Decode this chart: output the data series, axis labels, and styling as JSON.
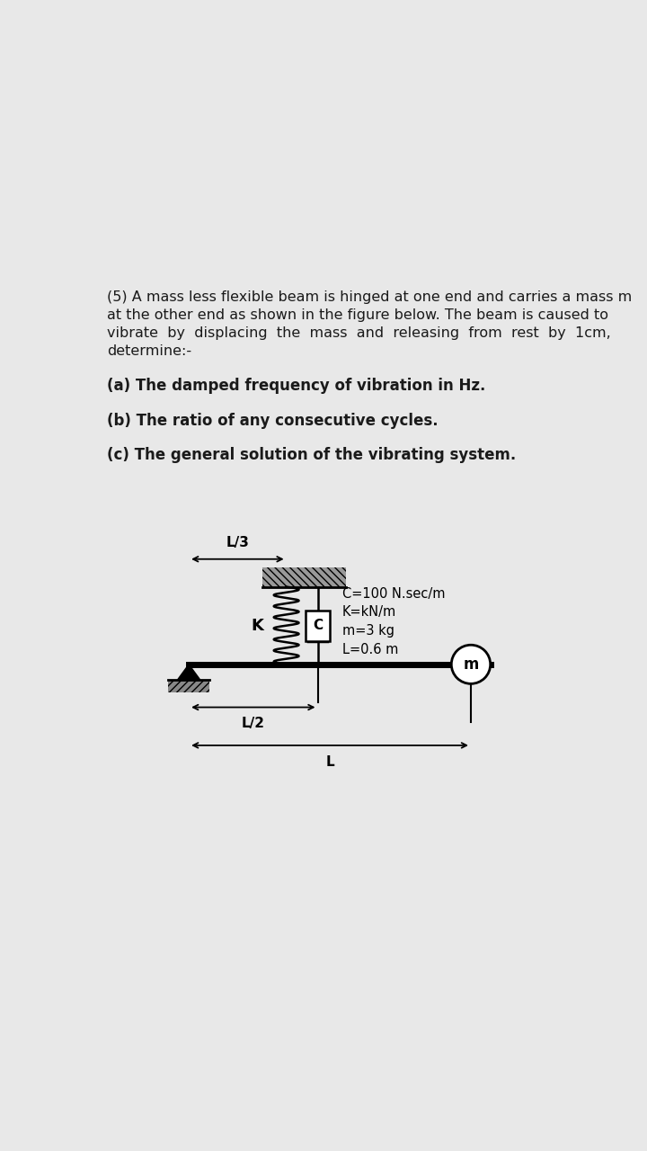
{
  "bg_color": "#e8e8e8",
  "text_color": "#1a1a1a",
  "title_lines": [
    "(5) A mass less flexible beam is hinged at one end and carries a mass m",
    "at the other end as shown in the figure below. The beam is caused to",
    "vibrate  by  displacing  the  mass  and  releasing  from  rest  by  1cm,",
    "determine:-"
  ],
  "part_a": "(a) The damped frequency of vibration in Hz.",
  "part_b": "(b) The ratio of any consecutive cycles.",
  "part_c": "(c) The general solution of the vibrating system.",
  "params_lines": [
    "C=100 N.sec/m",
    "K=kN/m",
    "m=3 kg",
    "L=0.6 m"
  ],
  "title_fontsize": 11.5,
  "part_fontsize": 12.0,
  "param_fontsize": 10.5
}
